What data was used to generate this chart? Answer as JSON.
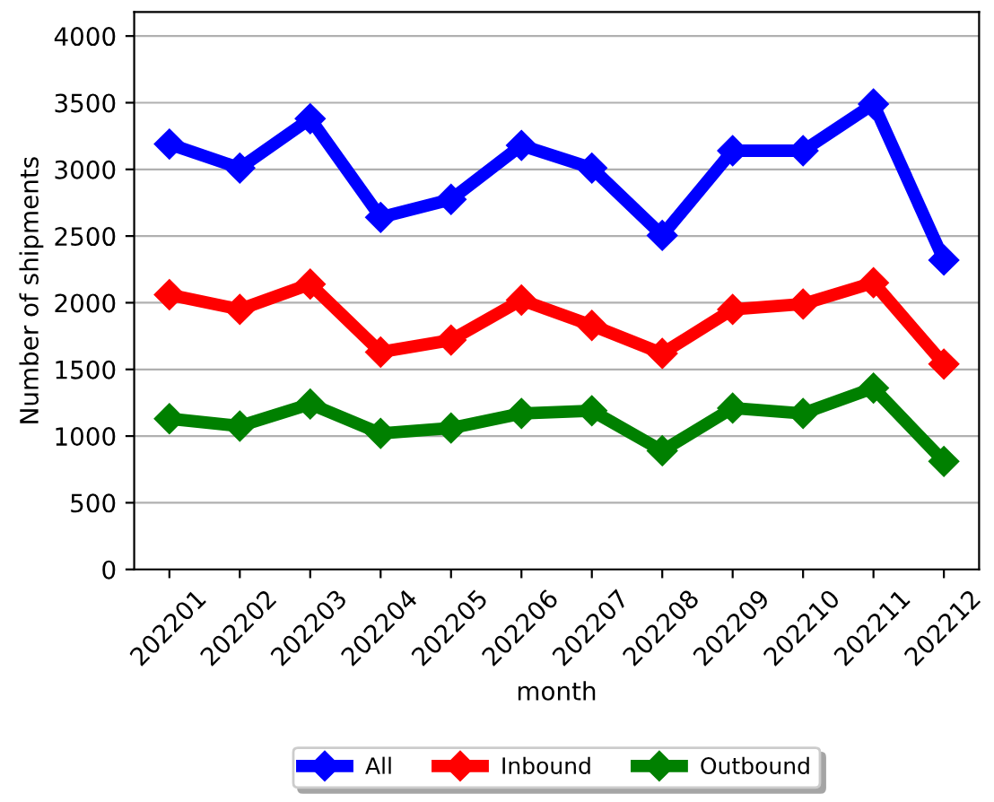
{
  "chart_data": {
    "type": "line",
    "xlabel": "month",
    "ylabel": "Number of shipments",
    "categories": [
      "202201",
      "202202",
      "202203",
      "202204",
      "202205",
      "202206",
      "202207",
      "202208",
      "202209",
      "202210",
      "202211",
      "202212"
    ],
    "series": [
      {
        "name": "All",
        "color": "#0000ff",
        "values": [
          3190,
          3010,
          3380,
          2640,
          2775,
          3180,
          3010,
          2505,
          3140,
          3140,
          3490,
          2320
        ]
      },
      {
        "name": "Inbound",
        "color": "#ff0000",
        "values": [
          2060,
          1950,
          2140,
          1630,
          1720,
          2020,
          1830,
          1620,
          1950,
          1990,
          2150,
          1540
        ]
      },
      {
        "name": "Outbound",
        "color": "#008000",
        "values": [
          1130,
          1075,
          1240,
          1020,
          1060,
          1170,
          1190,
          890,
          1210,
          1170,
          1360,
          810
        ]
      }
    ],
    "ylim": [
      0,
      4180
    ],
    "yticks": [
      0,
      500,
      1000,
      1500,
      2000,
      2500,
      3000,
      3500,
      4000
    ],
    "grid": "y",
    "legend": "bottom",
    "marker": "diamond",
    "line_style": "solid"
  }
}
